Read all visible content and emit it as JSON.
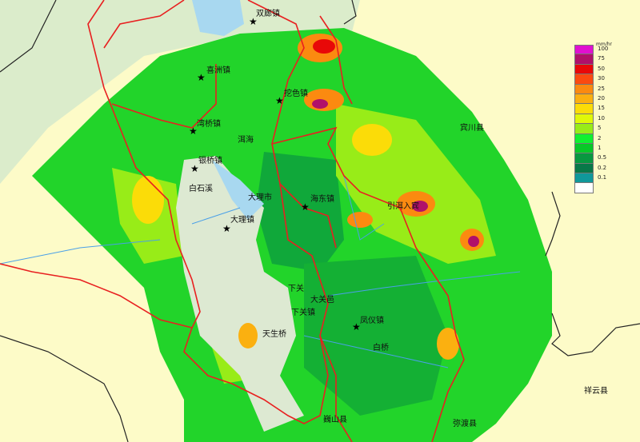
{
  "legend": {
    "unit": "mm/hr",
    "levels": [
      {
        "label": "100",
        "color": "#e010d0"
      },
      {
        "label": "75",
        "color": "#b0106a"
      },
      {
        "label": "50",
        "color": "#e80808"
      },
      {
        "label": "30",
        "color": "#fb4a10"
      },
      {
        "label": "25",
        "color": "#fb8a10"
      },
      {
        "label": "20",
        "color": "#fbb010"
      },
      {
        "label": "15",
        "color": "#fbdc08"
      },
      {
        "label": "10",
        "color": "#e0f808"
      },
      {
        "label": "5",
        "color": "#98ec18"
      },
      {
        "label": "2",
        "color": "#10f030"
      },
      {
        "label": "1",
        "color": "#08c828"
      },
      {
        "label": "0.5",
        "color": "#089840"
      },
      {
        "label": "0.2",
        "color": "#087848"
      },
      {
        "label": "0.1",
        "color": "#10989a"
      },
      {
        "label": "",
        "color": "#ffffff"
      }
    ]
  },
  "places": [
    {
      "name": "双廊镇",
      "star": true
    },
    {
      "name": "喜洲镇",
      "star": true
    },
    {
      "name": "挖色镇",
      "star": true
    },
    {
      "name": "湾桥镇",
      "star": true
    },
    {
      "name": "洱海",
      "star": false
    },
    {
      "name": "银桥镇",
      "star": true
    },
    {
      "name": "白石溪",
      "star": false
    },
    {
      "name": "大理市",
      "star": false
    },
    {
      "name": "大理镇",
      "star": true
    },
    {
      "name": "海东镇",
      "star": true
    },
    {
      "name": "引洱入宾",
      "star": false
    },
    {
      "name": "宾川县",
      "star": false
    },
    {
      "name": "下关",
      "star": false
    },
    {
      "name": "大关邑",
      "star": false
    },
    {
      "name": "下关镇",
      "star": false
    },
    {
      "name": "天生桥",
      "star": false
    },
    {
      "name": "凤仪镇",
      "star": true
    },
    {
      "name": "白桥",
      "star": false
    },
    {
      "name": "巍山县",
      "star": false
    },
    {
      "name": "祥云县",
      "star": false
    },
    {
      "name": "弥渡县",
      "star": false
    }
  ]
}
